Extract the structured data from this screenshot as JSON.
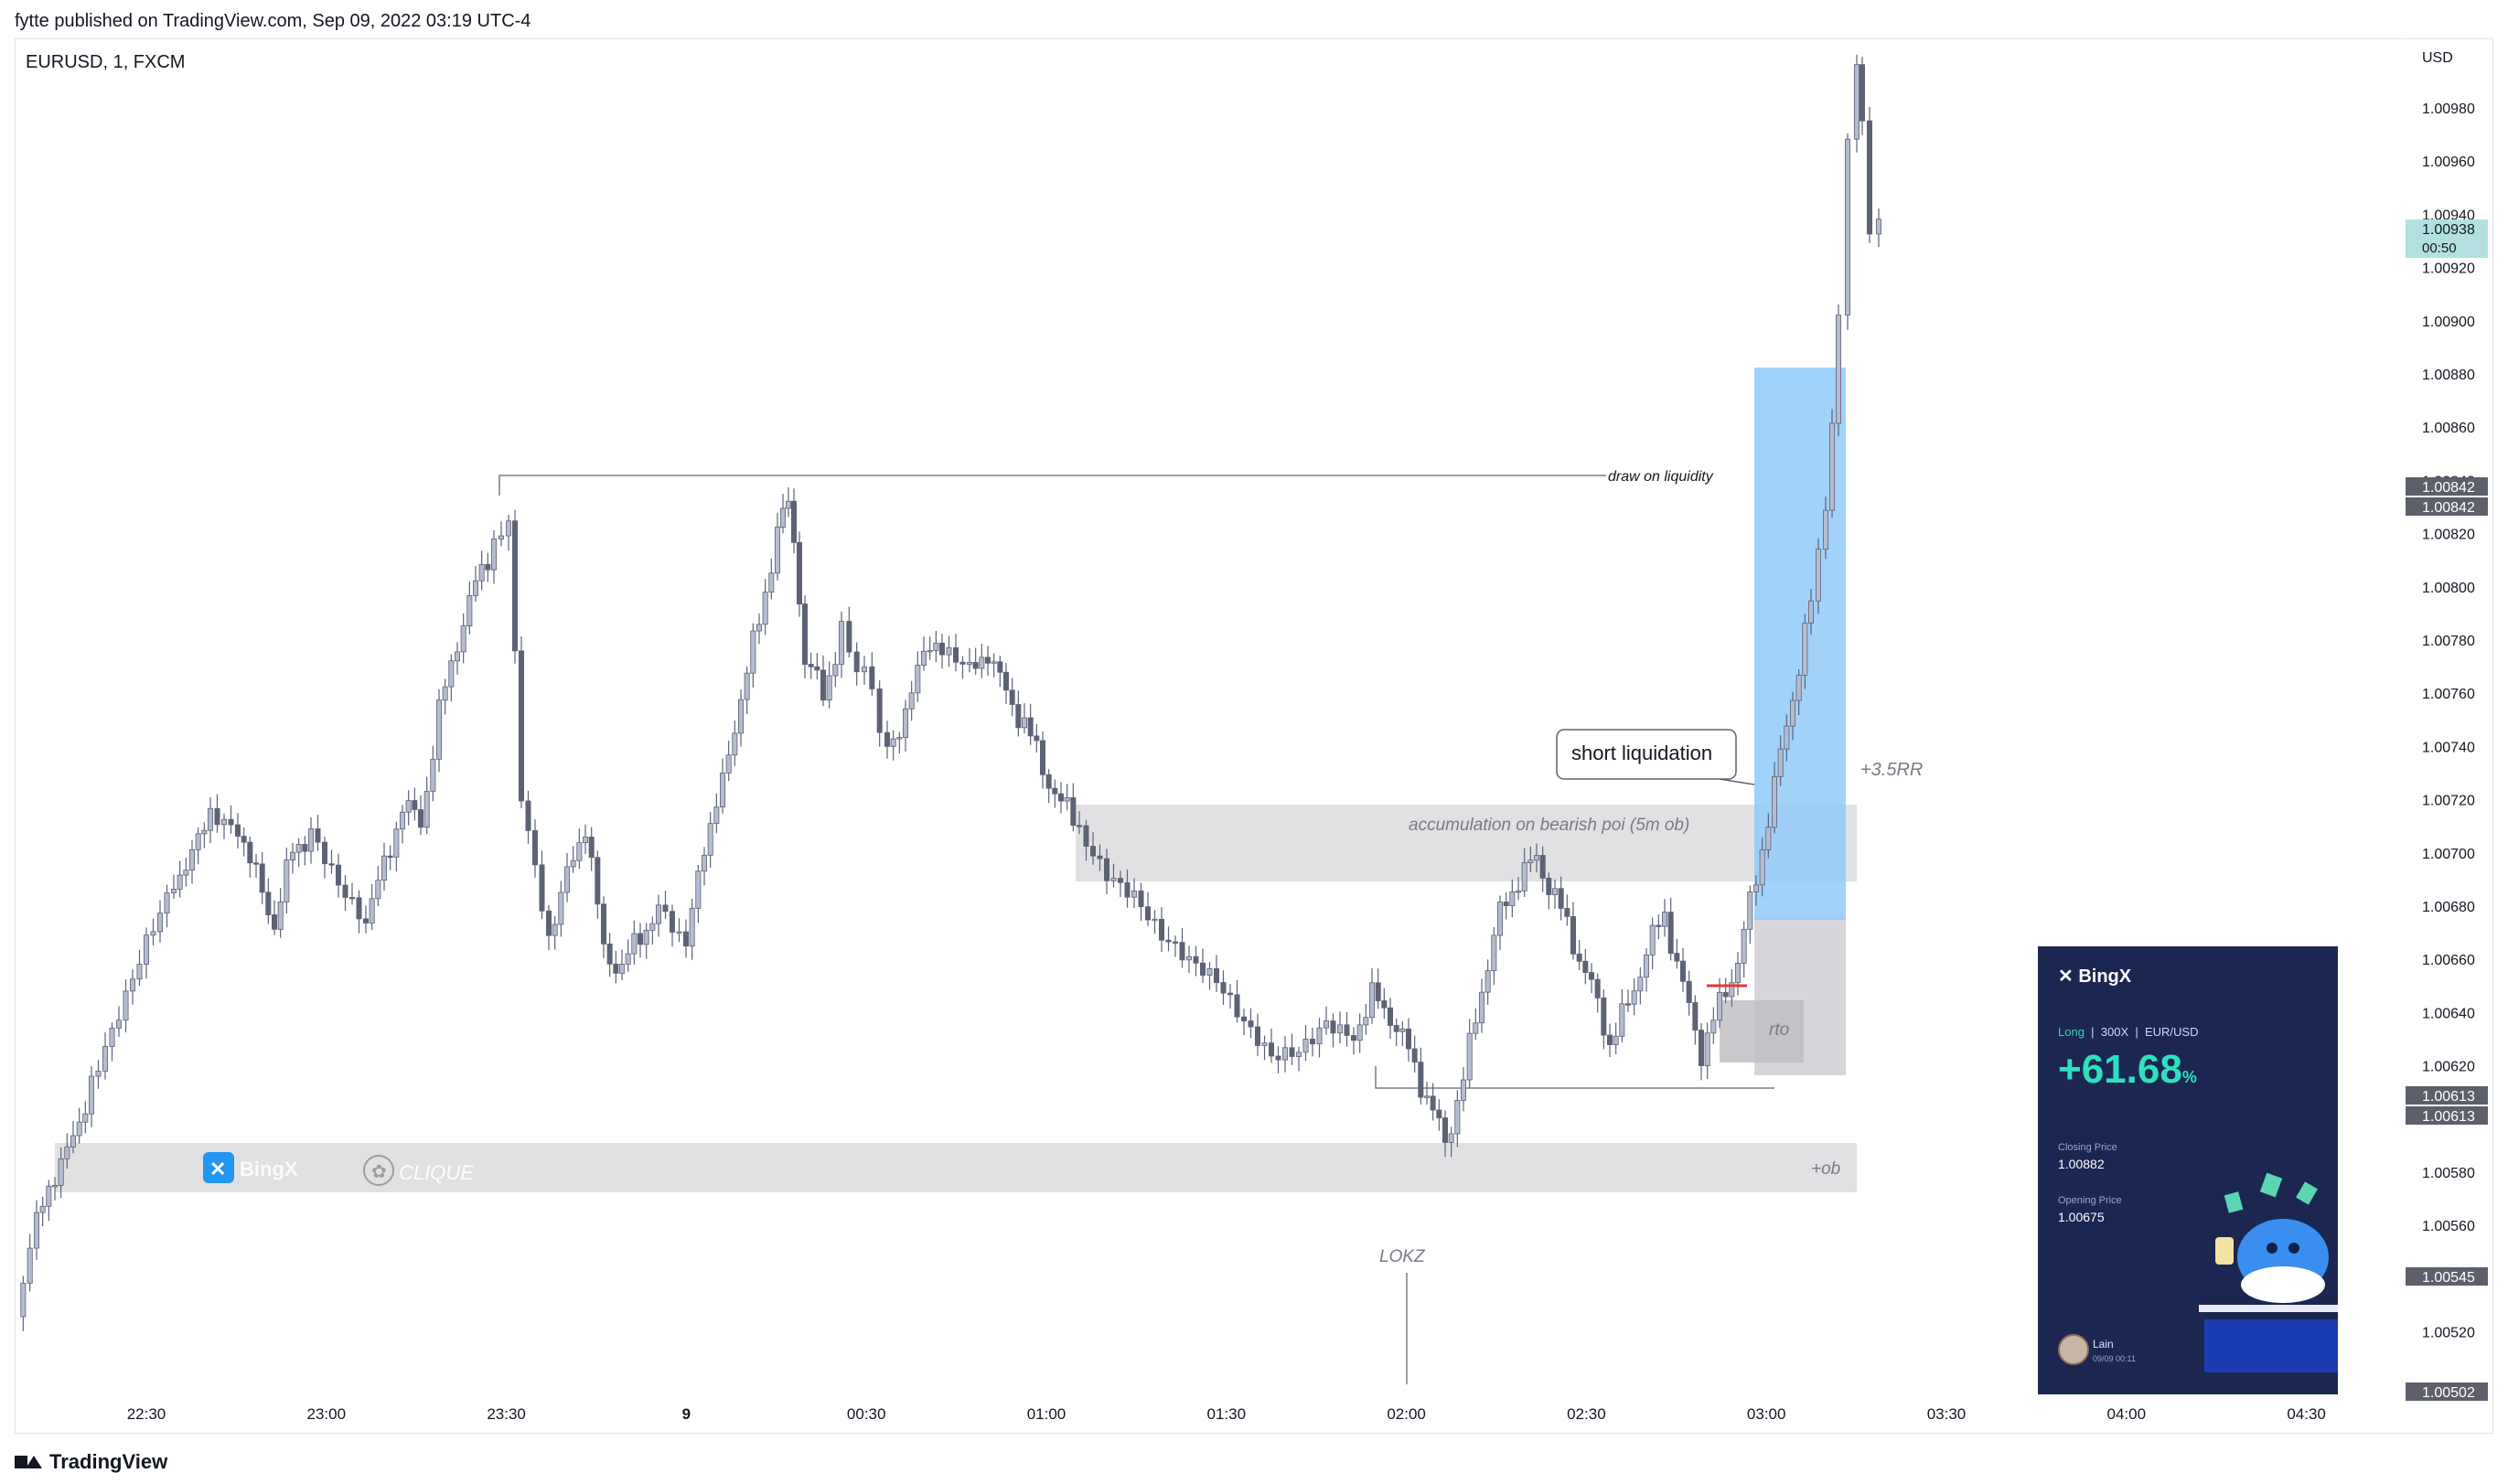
{
  "header": {
    "published": "fytte published on TradingView.com, Sep 09, 2022 03:19 UTC-4"
  },
  "footer": {
    "brand": "TradingView"
  },
  "chart_data": {
    "type": "candlestick",
    "symbol": "EURUSD, 1, FXCM",
    "currency": "USD",
    "ylim": [
      1.00495,
      1.01
    ]
  },
  "axis": {
    "y_ticks": [
      "1.00980",
      "1.00960",
      "1.00940",
      "1.00920",
      "1.00900",
      "1.00880",
      "1.00860",
      "1.00840",
      "1.00820",
      "1.00800",
      "1.00780",
      "1.00760",
      "1.00740",
      "1.00720",
      "1.00700",
      "1.00680",
      "1.00660",
      "1.00640",
      "1.00620",
      "1.00600",
      "1.00580",
      "1.00560",
      "1.00540",
      "1.00520"
    ],
    "x_ticks": [
      "22:30",
      "23:00",
      "23:30",
      "9",
      "00:30",
      "01:00",
      "01:30",
      "02:00",
      "02:30",
      "03:00",
      "03:30",
      "04:00",
      "04:30"
    ]
  },
  "price_tags": [
    {
      "value": "1.00938",
      "sub": "00:50",
      "color": "#b2e0e0",
      "text_color": "#131722"
    },
    {
      "value": "1.00842",
      "color": "#5d606b",
      "text_color": "#ffffff"
    },
    {
      "value": "1.00842",
      "color": "#5d606b",
      "text_color": "#ffffff"
    },
    {
      "value": "1.00613",
      "color": "#5d606b",
      "text_color": "#ffffff"
    },
    {
      "value": "1.00613",
      "color": "#5d606b",
      "text_color": "#ffffff"
    },
    {
      "value": "1.00545",
      "color": "#5d606b",
      "text_color": "#ffffff"
    },
    {
      "value": "1.00502",
      "color": "#5d606b",
      "text_color": "#ffffff"
    }
  ],
  "annotations": {
    "draw_on_liquidity": "draw on liquidity",
    "short_liquidation": "short liquidation",
    "rr": "+3.5RR",
    "accumulation": "accumulation on bearish poi (5m ob)",
    "rto": "rto",
    "ob": "+ob",
    "lokz": "LOKZ",
    "watermark_bingx": "BingX",
    "watermark_clique": "CLIQUE"
  },
  "bingx_card": {
    "brand": "BingX",
    "side": "Long",
    "leverage": "300X",
    "pair": "EUR/USD",
    "pnl": "+61.68",
    "pnl_unit": "%",
    "closing_label": "Closing Price",
    "closing_value": "1.00882",
    "opening_label": "Opening Price",
    "opening_value": "1.00675",
    "user": "Lain",
    "user_date": "09/09 00:11"
  },
  "colors": {
    "candle_up": "#b5bcd0",
    "candle_down": "#5d6275",
    "zone_gray": "#dcdcdf",
    "zone_blue": "#90caf9",
    "accent_red": "#e53935"
  }
}
